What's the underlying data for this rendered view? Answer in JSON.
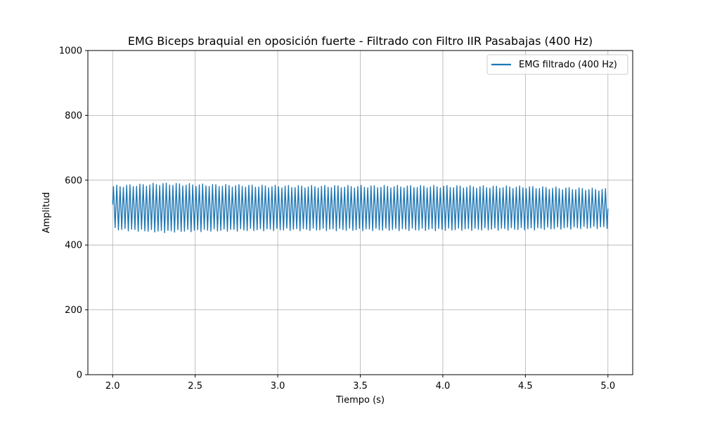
{
  "chart_data": {
    "type": "line",
    "title": "EMG Biceps braquial en oposición fuerte - Filtrado con Filtro IIR Pasabajas (400 Hz)",
    "xlabel": "Tiempo (s)",
    "ylabel": "Amplitud",
    "xlim": [
      1.85,
      5.15
    ],
    "ylim": [
      0,
      1000
    ],
    "xticks": [
      2.0,
      2.5,
      3.0,
      3.5,
      4.0,
      4.5,
      5.0
    ],
    "xtick_labels": [
      "2.0",
      "2.5",
      "3.0",
      "3.5",
      "4.0",
      "4.5",
      "5.0"
    ],
    "yticks": [
      0,
      200,
      400,
      600,
      800,
      1000
    ],
    "ytick_labels": [
      "0",
      "200",
      "400",
      "600",
      "800",
      "1000"
    ],
    "grid": true,
    "legend_position": "top-right",
    "series": [
      {
        "name": "EMG filtrado (400 Hz)",
        "color": "#1f77b4",
        "x_start": 2.0,
        "x_end": 5.0,
        "oscillation_cycles": 150,
        "envelope": [
          {
            "x": 2.0,
            "max": 580,
            "min": 450
          },
          {
            "x": 2.3,
            "max": 588,
            "min": 442
          },
          {
            "x": 2.5,
            "max": 585,
            "min": 445
          },
          {
            "x": 3.0,
            "max": 580,
            "min": 448
          },
          {
            "x": 3.5,
            "max": 580,
            "min": 448
          },
          {
            "x": 4.0,
            "max": 580,
            "min": 448
          },
          {
            "x": 4.5,
            "max": 578,
            "min": 450
          },
          {
            "x": 5.0,
            "max": 570,
            "min": 455
          }
        ]
      }
    ]
  }
}
